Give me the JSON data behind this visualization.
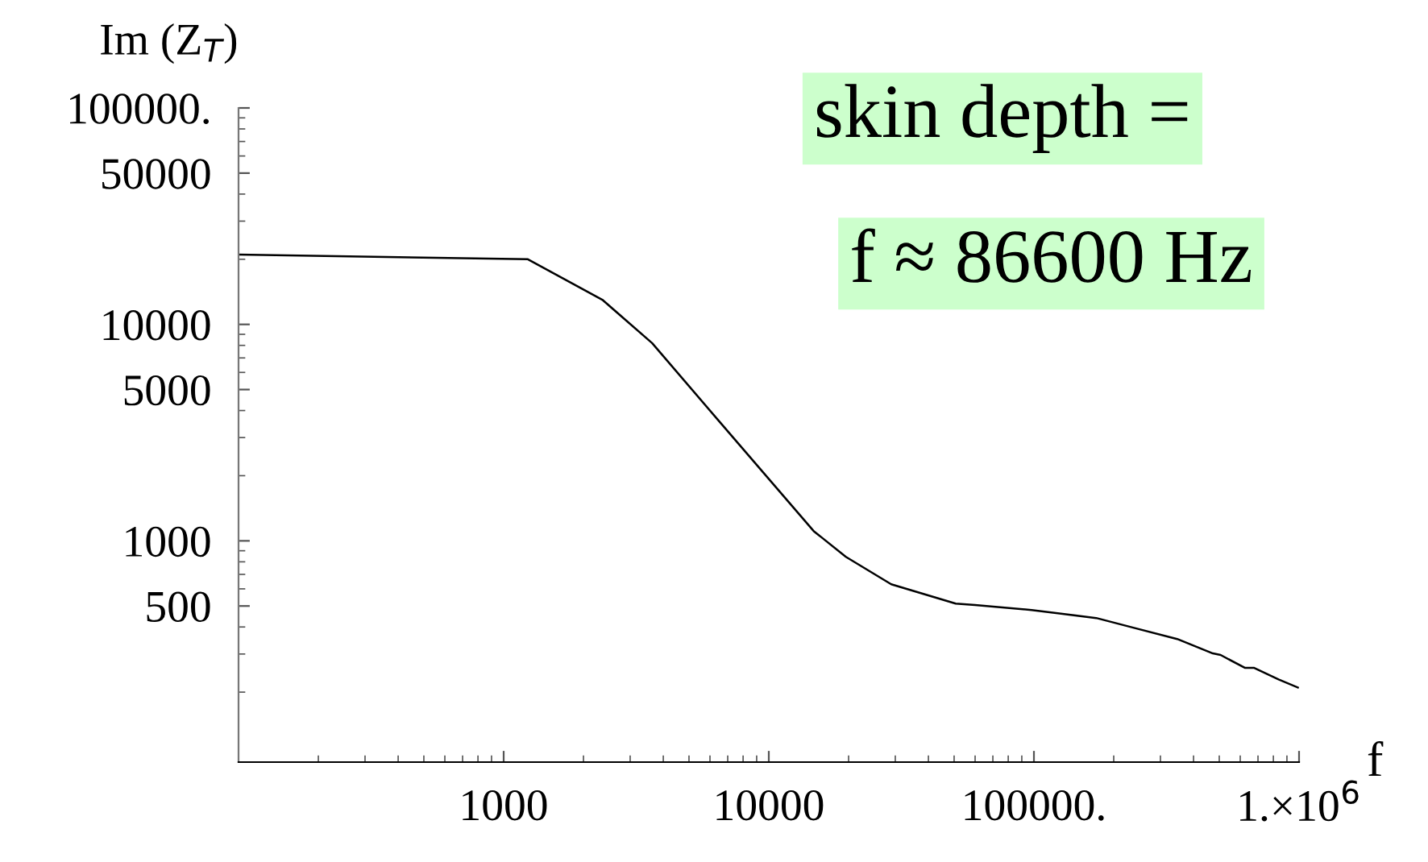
{
  "chart_data": {
    "type": "line",
    "xlabel": "f",
    "ylabel": "Im (Z$_{T}$)",
    "log": "xy",
    "x": [
      100,
      1234,
      2355,
      3630,
      6370,
      14760,
      19540,
      28960,
      50700,
      60000,
      98000,
      171800,
      237000,
      347000,
      473000,
      506000,
      624000,
      675000,
      837000,
      990000
    ],
    "series": [
      {
        "color": "#000000",
        "values": [
          21000,
          20000,
          13000,
          8200,
          3670,
          1110,
          843,
          630,
          513,
          505,
          479,
          440,
          397,
          352,
          302,
          297,
          259,
          259,
          229,
          210
        ]
      }
    ],
    "xlim": [
      100,
      1000000
    ],
    "ylim": [
      95,
      100000
    ],
    "xticks": [
      1000,
      10000,
      {
        "value": 100000,
        "label": "100000."
      },
      {
        "value": 1000000,
        "label": "1.×10$^{6}$"
      }
    ],
    "yticks": [
      {
        "value": 100000,
        "label": "100000."
      },
      50000,
      10000,
      5000,
      1000,
      500
    ],
    "grid": false,
    "legend": false,
    "marker": "none",
    "line_style": "solid",
    "annotations": [
      "skin depth =",
      "f ≈ 86600 Hz"
    ]
  }
}
